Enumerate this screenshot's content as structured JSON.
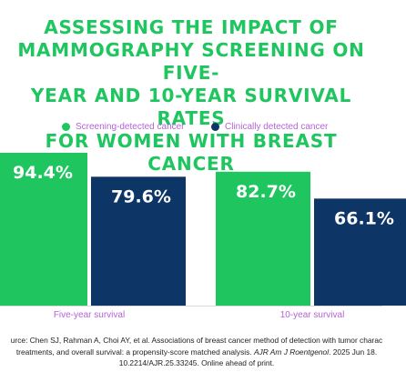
{
  "title_lines": [
    "ASSESSING THE IMPACT OF",
    "MAMMOGRAPHY SCREENING ON FIVE-",
    "YEAR AND 10-YEAR SURVIVAL RATES",
    "FOR WOMEN WITH BREAST CANCER"
  ],
  "colors": {
    "title": "#1fc55e",
    "screening": "#1fc55e",
    "clinical": "#0d3566",
    "legend_text": "#b463d6",
    "axis_label": "#b463d6",
    "value_label": "#ffffff"
  },
  "chart_data": {
    "type": "bar",
    "categories": [
      "Five-year survival",
      "10-year survival"
    ],
    "series": [
      {
        "name": "Screening-detected cancer",
        "values": [
          94.4,
          82.7
        ],
        "labels": [
          "94.4%",
          "82.7%"
        ],
        "color": "#1fc55e"
      },
      {
        "name": "Clinically detected cancer",
        "values": [
          79.6,
          66.1
        ],
        "labels": [
          "79.6%",
          "66.1%"
        ],
        "color": "#0d3566"
      }
    ],
    "ylim": [
      0,
      100
    ],
    "grid": false,
    "legend_position": "top-center",
    "value_axis_visible": false
  },
  "source": {
    "line1": "urce: Chen SJ, Rahman A, Choi AY, et al. Associations of breast cancer method of detection with tumor charac",
    "line2a": "treatments, and overall survival: a propensity-score matched analysis. ",
    "line2_journal": "AJR Am J Roentgenol",
    "line2b": ". 2025 Jun 18.",
    "line3": "10.2214/AJR.25.33245. Online ahead of print."
  }
}
